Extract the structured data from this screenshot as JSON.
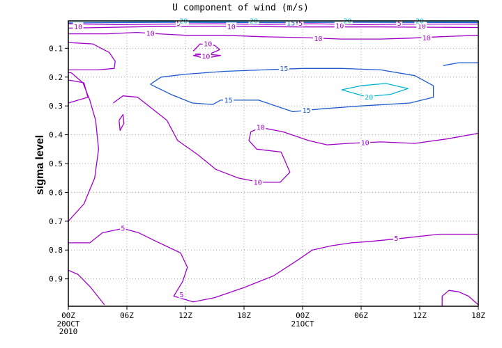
{
  "chart_data": {
    "type": "contour",
    "title": "U component of wind (m/s)",
    "xlabel": "",
    "ylabel": "sigma level",
    "x_ticks": [
      "00Z",
      "06Z",
      "12Z",
      "18Z",
      "00Z",
      "06Z",
      "12Z",
      "18Z"
    ],
    "x_date_labels": [
      {
        "tick_index": 0,
        "lines": [
          "20OCT",
          "2010"
        ]
      },
      {
        "tick_index": 4,
        "lines": [
          "21OCT"
        ]
      }
    ],
    "x_range_hours": [
      0,
      42
    ],
    "y_ticks": [
      0.1,
      0.2,
      0.3,
      0.4,
      0.5,
      0.6,
      0.7,
      0.8,
      0.9
    ],
    "y_range": [
      0.995,
      0.005
    ],
    "y_reversed": true,
    "grid": true,
    "contour_levels": [
      5,
      10,
      15,
      20
    ],
    "level_colors": {
      "5": "#a000c8",
      "10": "#a000c8",
      "15": "#1e5ad2",
      "20": "#00b4d2"
    },
    "contour_lines": [
      {
        "level": 5,
        "points": [
          [
            0,
            0.775
          ],
          [
            2.2,
            0.775
          ],
          [
            3.5,
            0.74
          ],
          [
            5.6,
            0.725
          ],
          [
            7.2,
            0.74
          ],
          [
            9,
            0.77
          ],
          [
            11.5,
            0.81
          ],
          [
            12.2,
            0.86
          ],
          [
            11.7,
            0.91
          ],
          [
            10.8,
            0.96
          ],
          [
            12.8,
            0.98
          ],
          [
            15,
            0.965
          ],
          [
            18,
            0.93
          ],
          [
            21,
            0.89
          ],
          [
            23.5,
            0.835
          ],
          [
            25,
            0.8
          ],
          [
            27,
            0.785
          ],
          [
            29,
            0.775
          ],
          [
            31,
            0.77
          ],
          [
            34,
            0.76
          ],
          [
            38,
            0.745
          ],
          [
            42,
            0.745
          ]
        ],
        "labels": [
          [
            5.6,
            0.725
          ],
          [
            11.6,
            0.955
          ],
          [
            33.6,
            0.76
          ]
        ]
      },
      {
        "level": 5,
        "points": [
          [
            0,
            0.87
          ],
          [
            1,
            0.885
          ],
          [
            2.3,
            0.93
          ],
          [
            3.7,
            0.99
          ]
        ]
      },
      {
        "level": 5,
        "points": [
          [
            38.3,
            0.995
          ],
          [
            38.3,
            0.96
          ],
          [
            39,
            0.94
          ],
          [
            40,
            0.945
          ],
          [
            41,
            0.96
          ],
          [
            42,
            0.99
          ]
        ]
      },
      {
        "level": 5,
        "points": [
          [
            0,
            0.015
          ],
          [
            5,
            0.018
          ],
          [
            10,
            0.016
          ],
          [
            15,
            0.015
          ],
          [
            20,
            0.017
          ],
          [
            25,
            0.015
          ],
          [
            30,
            0.018
          ],
          [
            35,
            0.016
          ],
          [
            42,
            0.016
          ]
        ],
        "labels": [
          [
            11.3,
            0.013
          ],
          [
            23.8,
            0.013
          ],
          [
            33.9,
            0.013
          ]
        ]
      },
      {
        "level": 10,
        "points": [
          [
            0,
            0.03
          ],
          [
            8,
            0.025
          ],
          [
            16,
            0.024
          ],
          [
            24,
            0.026
          ],
          [
            32,
            0.026
          ],
          [
            42,
            0.028
          ]
        ],
        "labels": [
          [
            1,
            0.025
          ],
          [
            16.7,
            0.025
          ],
          [
            27.8,
            0.022
          ],
          [
            36.2,
            0.023
          ]
        ]
      },
      {
        "level": 10,
        "points": [
          [
            0,
            0.05
          ],
          [
            4,
            0.05
          ],
          [
            7,
            0.045
          ],
          [
            9.3,
            0.05
          ],
          [
            12,
            0.055
          ],
          [
            16,
            0.055
          ],
          [
            20,
            0.06
          ],
          [
            24,
            0.063
          ],
          [
            28,
            0.068
          ],
          [
            32,
            0.068
          ],
          [
            35,
            0.065
          ],
          [
            38,
            0.06
          ],
          [
            42,
            0.055
          ]
        ],
        "labels": [
          [
            8.4,
            0.048
          ],
          [
            25.6,
            0.066
          ],
          [
            36.7,
            0.064
          ]
        ]
      },
      {
        "level": 10,
        "points": [
          [
            0,
            0.08
          ],
          [
            2.5,
            0.085
          ],
          [
            4.2,
            0.115
          ],
          [
            4.8,
            0.145
          ],
          [
            4.7,
            0.17
          ],
          [
            3,
            0.175
          ],
          [
            0,
            0.175
          ]
        ]
      },
      {
        "level": 10,
        "points": [
          [
            0,
            0.29
          ],
          [
            2,
            0.27
          ],
          [
            1.6,
            0.22
          ],
          [
            0,
            0.21
          ]
        ]
      },
      {
        "level": 10,
        "points": [
          [
            0,
            0.7
          ],
          [
            1.6,
            0.64
          ],
          [
            2.7,
            0.55
          ],
          [
            3.1,
            0.45
          ],
          [
            2.8,
            0.35
          ],
          [
            2.2,
            0.28
          ],
          [
            1.5,
            0.22
          ],
          [
            0.3,
            0.185
          ],
          [
            0,
            0.185
          ]
        ]
      },
      {
        "level": 10,
        "points": [
          [
            4.6,
            0.29
          ],
          [
            5.6,
            0.265
          ],
          [
            7.1,
            0.27
          ],
          [
            8.6,
            0.31
          ],
          [
            10.1,
            0.35
          ],
          [
            11.2,
            0.42
          ],
          [
            13.3,
            0.47
          ],
          [
            15.1,
            0.52
          ],
          [
            17.4,
            0.55
          ],
          [
            19.6,
            0.565
          ],
          [
            21.7,
            0.565
          ],
          [
            22.7,
            0.53
          ],
          [
            21.8,
            0.46
          ],
          [
            19.3,
            0.45
          ],
          [
            18.5,
            0.42
          ],
          [
            18.7,
            0.39
          ],
          [
            19.7,
            0.375
          ],
          [
            22,
            0.39
          ],
          [
            24.6,
            0.42
          ],
          [
            26.5,
            0.435
          ],
          [
            28.7,
            0.43
          ],
          [
            32,
            0.425
          ],
          [
            35.5,
            0.43
          ],
          [
            38.7,
            0.415
          ],
          [
            42,
            0.395
          ]
        ],
        "labels": [
          [
            19.4,
            0.565
          ],
          [
            19.7,
            0.375
          ],
          [
            30.4,
            0.428
          ]
        ]
      },
      {
        "level": 10,
        "points": [
          [
            5.2,
            0.35
          ],
          [
            5.6,
            0.33
          ],
          [
            5.7,
            0.36
          ],
          [
            5.3,
            0.385
          ],
          [
            5.2,
            0.35
          ]
        ]
      },
      {
        "level": 10,
        "points": [
          [
            12.8,
            0.11
          ],
          [
            13.5,
            0.085
          ],
          [
            15,
            0.09
          ],
          [
            15.5,
            0.105
          ],
          [
            14.5,
            0.12
          ],
          [
            13,
            0.12
          ]
        ],
        "labels": [
          [
            14.3,
            0.085
          ]
        ]
      },
      {
        "level": 10,
        "points": [
          [
            12.8,
            0.125
          ],
          [
            14,
            0.12
          ],
          [
            15.6,
            0.125
          ],
          [
            14,
            0.135
          ],
          [
            12.8,
            0.125
          ]
        ],
        "labels": [
          [
            14.1,
            0.128
          ]
        ]
      },
      {
        "level": 15,
        "points": [
          [
            0,
            0.012
          ],
          [
            10,
            0.01
          ],
          [
            20,
            0.011
          ],
          [
            30,
            0.01
          ],
          [
            42,
            0.011
          ]
        ],
        "labels": [
          [
            22.8,
            0.012
          ]
        ]
      },
      {
        "level": 15,
        "points": [
          [
            8.4,
            0.225
          ],
          [
            9.5,
            0.2
          ],
          [
            12,
            0.19
          ],
          [
            16,
            0.18
          ],
          [
            20,
            0.175
          ],
          [
            24,
            0.17
          ],
          [
            28,
            0.17
          ],
          [
            32,
            0.175
          ],
          [
            35.5,
            0.195
          ],
          [
            37.4,
            0.23
          ],
          [
            37.4,
            0.27
          ],
          [
            35,
            0.29
          ],
          [
            30,
            0.3
          ],
          [
            26,
            0.31
          ],
          [
            23,
            0.32
          ],
          [
            19.5,
            0.28
          ],
          [
            15.6,
            0.28
          ],
          [
            14.8,
            0.295
          ],
          [
            12.7,
            0.29
          ],
          [
            10.5,
            0.26
          ],
          [
            8.4,
            0.225
          ]
        ],
        "labels": [
          [
            22.1,
            0.17
          ],
          [
            24.4,
            0.315
          ],
          [
            16.4,
            0.28
          ]
        ]
      },
      {
        "level": 15,
        "points": [
          [
            38.4,
            0.16
          ],
          [
            40,
            0.15
          ],
          [
            42,
            0.15
          ]
        ]
      },
      {
        "level": 20,
        "points": [
          [
            28,
            0.244
          ],
          [
            30,
            0.23
          ],
          [
            32.5,
            0.222
          ],
          [
            34.8,
            0.24
          ],
          [
            33,
            0.26
          ],
          [
            30.5,
            0.268
          ],
          [
            28,
            0.244
          ]
        ],
        "labels": [
          [
            30.8,
            0.269
          ]
        ]
      },
      {
        "level": 20,
        "points": [
          [
            0,
            0.006
          ],
          [
            14,
            0.007
          ],
          [
            28,
            0.006
          ],
          [
            42,
            0.007
          ]
        ],
        "labels": [
          [
            11.8,
            0.005
          ],
          [
            19,
            0.005
          ],
          [
            28.6,
            0.005
          ],
          [
            36,
            0.005
          ]
        ]
      }
    ]
  }
}
